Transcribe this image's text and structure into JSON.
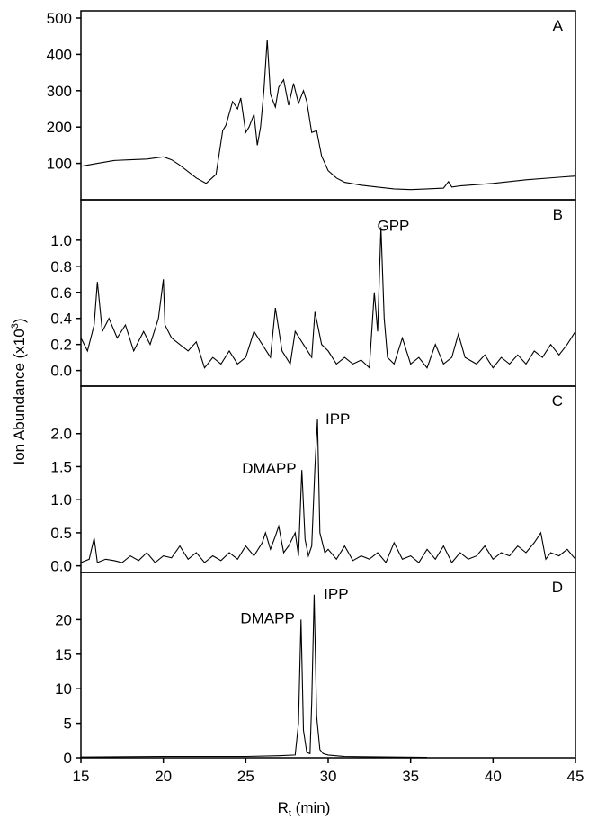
{
  "xlabel_main": "R",
  "xlabel_sub": "t",
  "xlabel_rest": " (min)",
  "ylabel_main": "Ion Abundance (x10",
  "ylabel_sup": "3",
  "ylabel_close": ")",
  "chart_data": [
    {
      "type": "line",
      "panel": "A",
      "xlim": [
        15,
        45
      ],
      "ylim": [
        0,
        500
      ],
      "yticks": [
        100,
        200,
        300,
        400,
        500
      ],
      "x": [
        15.0,
        16.0,
        17.0,
        18.0,
        19.0,
        20.0,
        20.5,
        21.0,
        22.0,
        22.6,
        23.2,
        23.6,
        23.8,
        24.2,
        24.5,
        24.7,
        25.0,
        25.2,
        25.5,
        25.7,
        25.9,
        26.1,
        26.3,
        26.5,
        26.8,
        27.0,
        27.3,
        27.6,
        27.9,
        28.2,
        28.5,
        28.7,
        29.0,
        29.3,
        29.6,
        30.0,
        30.5,
        31.0,
        32.0,
        33.0,
        34.0,
        35.0,
        36.0,
        37.0,
        37.3,
        37.5,
        38.0,
        40.0,
        42.0,
        44.0,
        45.0
      ],
      "values": [
        92,
        100,
        108,
        110,
        112,
        118,
        110,
        95,
        60,
        45,
        70,
        190,
        205,
        270,
        250,
        280,
        185,
        200,
        235,
        150,
        200,
        300,
        440,
        290,
        255,
        310,
        330,
        260,
        320,
        265,
        300,
        270,
        185,
        190,
        120,
        80,
        60,
        48,
        40,
        35,
        30,
        28,
        30,
        32,
        50,
        35,
        38,
        45,
        55,
        62,
        65
      ]
    },
    {
      "type": "line",
      "panel": "B",
      "xlim": [
        15,
        45
      ],
      "ylim": [
        -0.12,
        1.22
      ],
      "yticks": [
        0.0,
        0.2,
        0.4,
        0.6,
        0.8,
        1.0
      ],
      "annotations": [
        {
          "text": "GPP",
          "x": 33.3,
          "y": 1.1
        }
      ],
      "x": [
        15.0,
        15.4,
        15.8,
        16.0,
        16.3,
        16.7,
        17.2,
        17.7,
        18.2,
        18.8,
        19.2,
        19.7,
        20.0,
        20.1,
        20.5,
        21.0,
        21.5,
        22.0,
        22.5,
        23.0,
        23.5,
        24.0,
        24.5,
        25.0,
        25.5,
        26.0,
        26.5,
        26.8,
        27.2,
        27.7,
        28.0,
        28.5,
        29.0,
        29.2,
        29.6,
        30.0,
        30.5,
        31.0,
        31.5,
        32.0,
        32.5,
        32.8,
        33.0,
        33.2,
        33.4,
        33.6,
        34.0,
        34.5,
        35.0,
        35.5,
        36.0,
        36.5,
        37.0,
        37.5,
        37.9,
        38.3,
        39.0,
        39.5,
        40.0,
        40.5,
        41.0,
        41.5,
        42.0,
        42.5,
        43.0,
        43.5,
        44.0,
        44.5,
        45.0
      ],
      "values": [
        0.25,
        0.15,
        0.35,
        0.68,
        0.3,
        0.4,
        0.25,
        0.35,
        0.15,
        0.3,
        0.2,
        0.4,
        0.7,
        0.35,
        0.25,
        0.2,
        0.15,
        0.22,
        0.02,
        0.1,
        0.05,
        0.15,
        0.05,
        0.1,
        0.3,
        0.2,
        0.1,
        0.48,
        0.15,
        0.05,
        0.3,
        0.2,
        0.1,
        0.45,
        0.2,
        0.15,
        0.05,
        0.1,
        0.05,
        0.08,
        0.02,
        0.6,
        0.3,
        1.1,
        0.4,
        0.1,
        0.05,
        0.25,
        0.05,
        0.1,
        0.02,
        0.2,
        0.05,
        0.1,
        0.28,
        0.1,
        0.05,
        0.12,
        0.02,
        0.1,
        0.05,
        0.12,
        0.05,
        0.15,
        0.1,
        0.2,
        0.12,
        0.2,
        0.3
      ]
    },
    {
      "type": "line",
      "panel": "C",
      "xlim": [
        15,
        45
      ],
      "ylim": [
        -0.1,
        2.5
      ],
      "yticks": [
        0.0,
        0.5,
        1.0,
        1.5,
        2.0
      ],
      "annotations": [
        {
          "text": "IPP",
          "x": 29.4,
          "y": 2.2
        },
        {
          "text": "DMAPP",
          "x": 28.4,
          "y": 1.45
        }
      ],
      "x": [
        15.0,
        15.5,
        15.8,
        16.0,
        16.5,
        17.0,
        17.5,
        18.0,
        18.5,
        19.0,
        19.5,
        20.0,
        20.5,
        21.0,
        21.5,
        22.0,
        22.5,
        23.0,
        23.5,
        24.0,
        24.5,
        25.0,
        25.5,
        26.0,
        26.2,
        26.5,
        26.8,
        27.0,
        27.3,
        27.6,
        28.0,
        28.2,
        28.4,
        28.6,
        28.8,
        29.0,
        29.2,
        29.35,
        29.5,
        29.8,
        30.0,
        30.5,
        31.0,
        31.5,
        32.0,
        32.5,
        33.0,
        33.5,
        34.0,
        34.5,
        35.0,
        35.5,
        36.0,
        36.5,
        37.0,
        37.5,
        38.0,
        38.5,
        39.0,
        39.5,
        40.0,
        40.5,
        41.0,
        41.5,
        42.0,
        42.5,
        42.9,
        43.2,
        43.5,
        44.0,
        44.5,
        45.0
      ],
      "values": [
        0.05,
        0.1,
        0.42,
        0.05,
        0.1,
        0.08,
        0.05,
        0.15,
        0.08,
        0.2,
        0.05,
        0.15,
        0.12,
        0.3,
        0.1,
        0.2,
        0.05,
        0.15,
        0.08,
        0.2,
        0.1,
        0.3,
        0.15,
        0.35,
        0.5,
        0.25,
        0.45,
        0.6,
        0.2,
        0.3,
        0.5,
        0.15,
        1.45,
        0.4,
        0.15,
        0.3,
        1.5,
        2.22,
        0.5,
        0.2,
        0.25,
        0.1,
        0.3,
        0.08,
        0.15,
        0.1,
        0.2,
        0.05,
        0.35,
        0.1,
        0.15,
        0.05,
        0.25,
        0.1,
        0.3,
        0.05,
        0.2,
        0.1,
        0.15,
        0.3,
        0.1,
        0.2,
        0.15,
        0.3,
        0.2,
        0.35,
        0.5,
        0.1,
        0.2,
        0.15,
        0.25,
        0.1
      ]
    },
    {
      "type": "line",
      "panel": "D",
      "xlim": [
        15,
        45
      ],
      "ylim": [
        0,
        25
      ],
      "yticks": [
        0,
        5,
        10,
        15,
        20
      ],
      "annotations": [
        {
          "text": "IPP",
          "x": 29.3,
          "y": 23.5
        },
        {
          "text": "DMAPP",
          "x": 28.3,
          "y": 20
        }
      ],
      "x": [
        15.0,
        20.0,
        25.0,
        27.0,
        28.0,
        28.2,
        28.35,
        28.5,
        28.7,
        28.9,
        29.0,
        29.15,
        29.3,
        29.5,
        29.7,
        30.0,
        31.0,
        32.0,
        34.0,
        36.0
      ],
      "values": [
        0.1,
        0.2,
        0.2,
        0.3,
        0.4,
        5.0,
        20.0,
        4.0,
        0.8,
        0.6,
        8.0,
        23.6,
        6.0,
        1.2,
        0.6,
        0.4,
        0.2,
        0.15,
        0.1,
        0.05
      ]
    }
  ],
  "x_axis": {
    "ticks": [
      15,
      20,
      25,
      30,
      35,
      40,
      45
    ]
  },
  "colors": {
    "line": "#000000",
    "axis": "#000000",
    "background": "#ffffff"
  }
}
